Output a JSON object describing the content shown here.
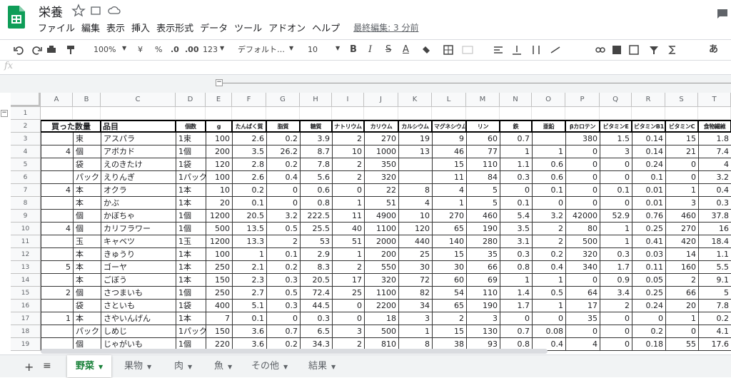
{
  "header": {
    "title": "栄養",
    "menu": [
      "ファイル",
      "編集",
      "表示",
      "挿入",
      "表示形式",
      "データ",
      "ツール",
      "アドオン",
      "ヘルプ"
    ],
    "last_edit": "最終編集: 3 分前"
  },
  "toolbar": {
    "zoom": "100%",
    "currency": "¥",
    "percent": "%",
    "decimal_decrease": ".0",
    "decimal_increase": ".00",
    "number_format": "123",
    "font": "デフォルト…",
    "font_size": "10",
    "bold": "B",
    "italic": "I",
    "strike": "S",
    "text_color": "A",
    "input_tool": "あ"
  },
  "formula_bar": {
    "label": "fx"
  },
  "columns": [
    "A",
    "B",
    "C",
    "D",
    "E",
    "F",
    "G",
    "H",
    "I",
    "J",
    "K",
    "L",
    "M",
    "N",
    "O",
    "P",
    "Q",
    "R",
    "S",
    "T"
  ],
  "row_numbers": [
    1,
    2,
    3,
    4,
    5,
    6,
    7,
    8,
    9,
    10,
    11,
    12,
    13,
    14,
    15,
    16,
    17,
    18,
    19
  ],
  "table": {
    "header": [
      "買った数量",
      null,
      "品目",
      "個数",
      "g",
      "たんぱく質",
      "脂質",
      "糖質",
      "ナトリウム",
      "カリウム",
      "カルシウム",
      "マグネシウム",
      "リン",
      "鉄",
      "亜鉛",
      "βカロテン",
      "ビタミンE",
      "ビタミンB1",
      "ビタミンC",
      "食物繊維"
    ],
    "rows": [
      [
        null,
        "束",
        "アスパラ",
        "1束",
        100,
        2.6,
        0.2,
        3.9,
        2,
        270,
        19,
        9,
        60,
        0.7,
        null,
        380,
        1.5,
        0.14,
        15,
        1.8
      ],
      [
        4,
        "個",
        "アボカド",
        "1個",
        200,
        3.5,
        26.2,
        8.7,
        10,
        1000,
        13,
        46,
        77,
        1,
        1,
        0,
        3,
        0.14,
        21,
        7.4
      ],
      [
        null,
        "袋",
        "えのきたけ",
        "1袋",
        120,
        2.8,
        0.2,
        7.8,
        2,
        350,
        null,
        15,
        110,
        1.1,
        0.6,
        0,
        0,
        0.24,
        0,
        4
      ],
      [
        null,
        "パック",
        "えりんぎ",
        "1パック",
        100,
        2.6,
        0.4,
        5.6,
        2,
        320,
        null,
        11,
        84,
        0.3,
        0.6,
        0,
        0,
        0.1,
        0,
        3.2
      ],
      [
        4,
        "本",
        "オクラ",
        "1本",
        10,
        0.2,
        0,
        0.6,
        0,
        22,
        8,
        4,
        5,
        0,
        0.1,
        0,
        0.1,
        0.01,
        1,
        0.4
      ],
      [
        null,
        "本",
        "かぶ",
        "1本",
        20,
        0.1,
        0,
        0.8,
        1,
        51,
        4,
        1,
        5,
        0.1,
        0,
        0,
        0,
        0.01,
        3,
        0.3
      ],
      [
        null,
        "個",
        "かぼちゃ",
        "1個",
        1200,
        20.5,
        3.2,
        222.5,
        11,
        4900,
        10,
        270,
        460,
        5.4,
        3.2,
        42000,
        52.9,
        0.76,
        460,
        37.8
      ],
      [
        4,
        "個",
        "カリフラワー",
        "1個",
        500,
        13.5,
        0.5,
        25.5,
        40,
        1100,
        120,
        65,
        190,
        3.5,
        2,
        80,
        1,
        0.25,
        270,
        16
      ],
      [
        null,
        "玉",
        "キャベツ",
        "1玉",
        1200,
        13.3,
        2,
        53,
        51,
        2000,
        440,
        140,
        280,
        3.1,
        2,
        500,
        1,
        0.41,
        420,
        18.4
      ],
      [
        null,
        "本",
        "きゅうり",
        "1本",
        100,
        1,
        0.1,
        2.9,
        1,
        200,
        25,
        15,
        35,
        0.3,
        0.2,
        320,
        0.3,
        0.03,
        14,
        1.1
      ],
      [
        5,
        "本",
        "ゴーヤ",
        "1本",
        250,
        2.1,
        0.2,
        8.3,
        2,
        550,
        30,
        30,
        66,
        0.8,
        0.4,
        340,
        1.7,
        0.11,
        160,
        5.5
      ],
      [
        null,
        "本",
        "ごぼう",
        "1本",
        150,
        2.3,
        0.3,
        20.5,
        17,
        320,
        72,
        60,
        69,
        1,
        1,
        0,
        0.9,
        0.05,
        2,
        9.1
      ],
      [
        2,
        "個",
        "さつまいも",
        "1個",
        250,
        2.7,
        0.5,
        72.4,
        25,
        1100,
        82,
        54,
        110,
        1.4,
        0.5,
        64,
        3.4,
        0.25,
        66,
        5
      ],
      [
        null,
        "袋",
        "さといも",
        "1袋",
        400,
        5.1,
        0.3,
        44.5,
        0,
        2200,
        34,
        65,
        190,
        1.7,
        1,
        17,
        2,
        0.24,
        20,
        7.8
      ],
      [
        1,
        "本",
        "さやいんげん",
        "1本",
        7,
        0.1,
        0,
        0.3,
        0,
        18,
        3,
        2,
        3,
        0,
        0,
        35,
        0,
        0,
        1,
        0.2
      ],
      [
        null,
        "パック",
        "しめじ",
        "1パック",
        150,
        3.6,
        0.7,
        6.5,
        3,
        500,
        1,
        15,
        130,
        0.7,
        0.08,
        0,
        0,
        0.2,
        0,
        4.1
      ],
      [
        null,
        "個",
        "じゃがいも",
        "1個",
        220,
        3.6,
        0.2,
        34.3,
        2,
        810,
        8,
        38,
        93,
        0.8,
        0.4,
        4,
        0,
        0.18,
        55,
        17.6
      ]
    ]
  },
  "tabs": [
    "野菜",
    "果物",
    "肉",
    "魚",
    "その他",
    "結果"
  ]
}
